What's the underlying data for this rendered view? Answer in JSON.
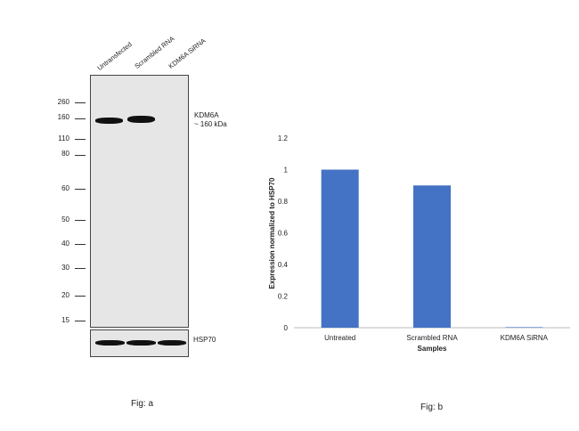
{
  "fig_a": {
    "lanes": [
      "Untransfected",
      "Scrambled RNA",
      "KDM6A SiRNA"
    ],
    "markers": [
      "260",
      "160",
      "110",
      "80",
      "60",
      "50",
      "40",
      "30",
      "20",
      "15"
    ],
    "target_label": "KDM6A",
    "target_size": "~ 160 kDa",
    "loading_control": "HSP70",
    "caption": "Fig: a"
  },
  "fig_b": {
    "caption": "Fig: b"
  },
  "chart_data": {
    "type": "bar",
    "categories": [
      "Untreated",
      "Scrambled RNA",
      "KDM6A SiRNA"
    ],
    "values": [
      1.0,
      0.9,
      0.0
    ],
    "xlabel": "Samples",
    "ylabel": "Expression normalized to HSP70",
    "ylim": [
      0,
      1.2
    ],
    "yticks": [
      "0",
      "0.2",
      "0.4",
      "0.6",
      "0.8",
      "1",
      "1.2"
    ],
    "bar_color": "#4472c4"
  }
}
